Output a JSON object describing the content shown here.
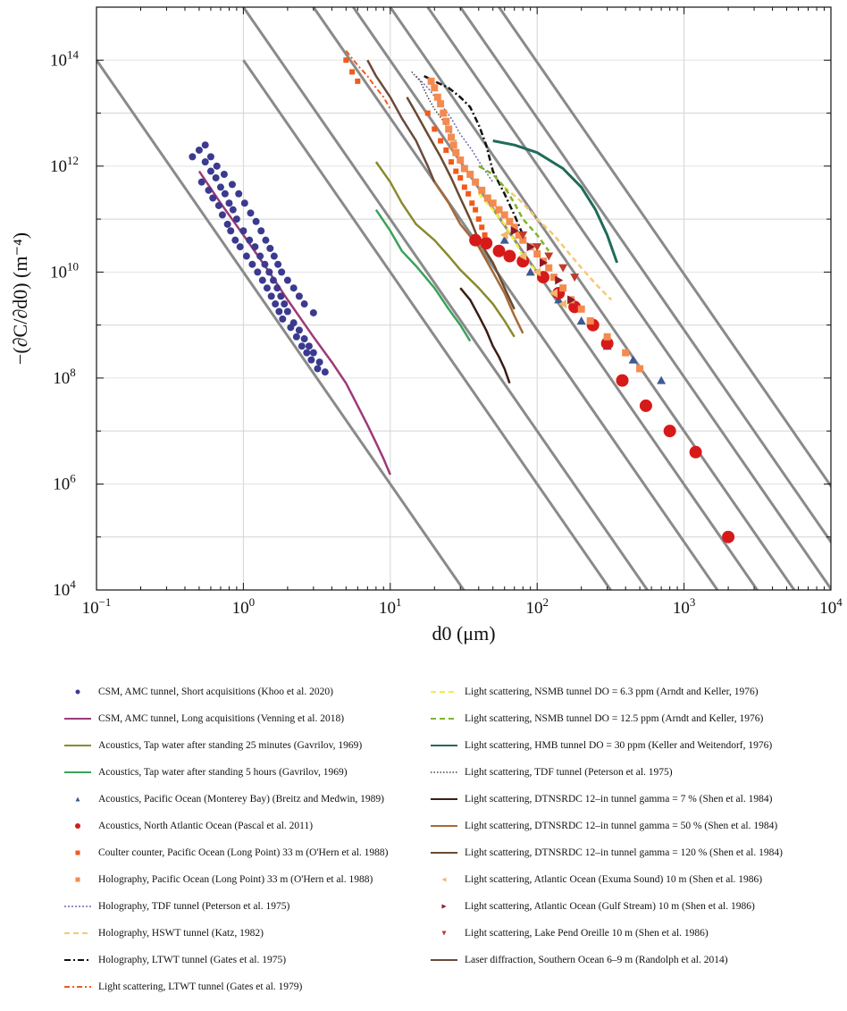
{
  "chart_data": {
    "type": "scatter",
    "xscale": "log",
    "yscale": "log",
    "xlim": [
      0.1,
      10000
    ],
    "ylim": [
      10000,
      1000000000000000
    ],
    "xlabel": "d0 (μm)",
    "ylabel": "−(∂C/∂d0) (m⁻⁴)",
    "x_ticks": [
      {
        "base": "10",
        "exp": "−1"
      },
      {
        "base": "10",
        "exp": "0"
      },
      {
        "base": "10",
        "exp": "1"
      },
      {
        "base": "10",
        "exp": "2"
      },
      {
        "base": "10",
        "exp": "3"
      },
      {
        "base": "10",
        "exp": "4"
      }
    ],
    "y_ticks": [
      {
        "base": "10",
        "exp": "4"
      },
      {
        "base": "10",
        "exp": "6"
      },
      {
        "base": "10",
        "exp": "8"
      },
      {
        "base": "10",
        "exp": "10"
      },
      {
        "base": "10",
        "exp": "12"
      },
      {
        "base": "10",
        "exp": "14"
      }
    ],
    "grid": true,
    "reference_lines_slope": -4,
    "reference_lines": [
      {
        "x": 0.1,
        "y": 100000000000000.0
      },
      {
        "x": 1,
        "y": 100000000000000.0
      },
      {
        "x": 1,
        "y": 1000000000000000.0
      },
      {
        "x": 3,
        "y": 1000000000000000.0
      },
      {
        "x": 5.6,
        "y": 1000000000000000.0
      },
      {
        "x": 10,
        "y": 1000000000000000.0
      },
      {
        "x": 18,
        "y": 1000000000000000.0
      },
      {
        "x": 30,
        "y": 1000000000000000.0
      },
      {
        "x": 55,
        "y": 1000000000000000.0
      }
    ],
    "series": [
      {
        "name": "CSM, AMC tunnel, Short acquisitions (Khoo et al. 2020)",
        "kind": "marker",
        "marker": "circle",
        "color": "#3b3a8f",
        "size": 4,
        "x": [
          0.45,
          0.5,
          0.55,
          0.6,
          0.65,
          0.7,
          0.75,
          0.8,
          0.85,
          0.9,
          1.0,
          1.1,
          1.2,
          1.3,
          1.4,
          1.5,
          1.6,
          1.7,
          1.8,
          1.9,
          2.0,
          2.2,
          2.4,
          2.6,
          2.8,
          3.0,
          3.3,
          3.6,
          0.52,
          0.58,
          0.62,
          0.68,
          0.72,
          0.78,
          0.82,
          0.88,
          0.95,
          1.05,
          1.15,
          1.25,
          1.35,
          1.45,
          1.55,
          1.65,
          1.75,
          1.85,
          2.1,
          2.3,
          2.5,
          2.7,
          2.9,
          3.2,
          0.55,
          0.6,
          0.66,
          0.74,
          0.84,
          0.93,
          1.02,
          1.12,
          1.22,
          1.32,
          1.42,
          1.52,
          1.62,
          1.72,
          1.82,
          2.0,
          2.2,
          2.4,
          2.6,
          3.0
        ],
        "y": [
          1500000000000.0,
          2000000000000.0,
          1200000000000.0,
          800000000000.0,
          600000000000.0,
          400000000000.0,
          300000000000.0,
          200000000000.0,
          150000000000.0,
          100000000000.0,
          60000000000.0,
          40000000000.0,
          30000000000.0,
          20000000000.0,
          14000000000.0,
          10000000000.0,
          7000000000.0,
          5000000000.0,
          3500000000.0,
          2500000000.0,
          1800000000.0,
          1100000000.0,
          800000000.0,
          550000000.0,
          400000000.0,
          300000000.0,
          200000000.0,
          130000000.0,
          500000000000.0,
          350000000000.0,
          250000000000.0,
          180000000000.0,
          120000000000.0,
          80000000000.0,
          60000000000.0,
          40000000000.0,
          30000000000.0,
          20000000000.0,
          14000000000.0,
          10000000000.0,
          7000000000.0,
          5000000000.0,
          3500000000.0,
          2500000000.0,
          1800000000.0,
          1300000000.0,
          900000000.0,
          600000000.0,
          400000000.0,
          300000000.0,
          220000000.0,
          150000000.0,
          2500000000000.0,
          1500000000000.0,
          1000000000000.0,
          700000000000.0,
          450000000000.0,
          300000000000.0,
          200000000000.0,
          130000000000.0,
          90000000000.0,
          60000000000.0,
          40000000000.0,
          28000000000.0,
          20000000000.0,
          14000000000.0,
          10000000000.0,
          7000000000.0,
          5000000000.0,
          3500000000.0,
          2500000000.0,
          1700000000.0
        ]
      },
      {
        "name": "CSM, AMC tunnel, Long acquisitions (Venning et al. 2018)",
        "kind": "line",
        "color": "#9c3a78",
        "dash": "",
        "width": 2.5,
        "x": [
          0.5,
          0.7,
          1,
          1.5,
          2,
          3,
          4,
          5,
          6,
          7,
          8,
          9,
          10
        ],
        "y": [
          800000000000.0,
          200000000000.0,
          50000000000.0,
          10000000000.0,
          3000000000.0,
          600000000.0,
          200000000.0,
          80000000.0,
          30000000.0,
          13000000.0,
          6000000.0,
          3000000.0,
          1500000.0
        ]
      },
      {
        "name": "Acoustics, Tap water after standing 25 minutes (Gavrilov, 1969)",
        "kind": "line",
        "color": "#8a8a2e",
        "dash": "",
        "width": 2.5,
        "x": [
          8,
          10,
          12,
          15,
          20,
          25,
          30,
          40,
          50,
          60,
          70
        ],
        "y": [
          1200000000000.0,
          500000000000.0,
          200000000000.0,
          80000000000.0,
          40000000000.0,
          20000000000.0,
          11000000000.0,
          5000000000.0,
          2500000000.0,
          1200000000.0,
          600000000.0
        ]
      },
      {
        "name": "Acoustics, Tap water after standing 5 hours (Gavrilov, 1969)",
        "kind": "line",
        "color": "#3aa25a",
        "dash": "",
        "width": 2.5,
        "x": [
          8,
          10,
          12,
          15,
          20,
          25,
          30,
          35
        ],
        "y": [
          150000000000.0,
          60000000000.0,
          25000000000.0,
          13000000000.0,
          5000000000.0,
          2000000000.0,
          1000000000.0,
          500000000.0
        ]
      },
      {
        "name": "Acoustics, Pacific Ocean (Monterey Bay) (Breitz and Medwin, 1989)",
        "kind": "marker",
        "marker": "triangle-up",
        "color": "#3e5a96",
        "size": 5,
        "x": [
          60,
          90,
          140,
          200,
          300,
          450,
          700
        ],
        "y": [
          40000000000.0,
          10000000000.0,
          3000000000.0,
          1200000000.0,
          400000000.0,
          220000000.0,
          90000000.0
        ]
      },
      {
        "name": "Acoustics, North Atlantic Ocean (Pascal et al. 2011)",
        "kind": "marker",
        "marker": "circle",
        "color": "#d61a1a",
        "size": 7,
        "x": [
          38,
          45,
          55,
          65,
          80,
          110,
          140,
          180,
          240,
          300,
          380,
          550,
          800,
          1200,
          2000
        ],
        "y": [
          40000000000.0,
          35000000000.0,
          25000000000.0,
          20000000000.0,
          16000000000.0,
          8000000000.0,
          4000000000.0,
          2200000000.0,
          1000000000.0,
          450000000.0,
          90000000.0,
          30000000.0,
          10000000.0,
          4000000.0,
          100000.0
        ]
      },
      {
        "name": "Coulter counter, Pacific Ocean (Long Point) 33 m (O'Hern et al. 1988)",
        "kind": "marker",
        "marker": "square",
        "color": "#f05a1a",
        "size": 3,
        "x": [
          5,
          5.5,
          6,
          18,
          20,
          22,
          24,
          26,
          28,
          30,
          32,
          34,
          36,
          38,
          40,
          42,
          44
        ],
        "y": [
          100000000000000.0,
          60000000000000.0,
          40000000000000.0,
          10000000000000.0,
          5000000000000.0,
          3000000000000.0,
          2000000000000.0,
          1200000000000.0,
          800000000000.0,
          600000000000.0,
          400000000000.0,
          300000000000.0,
          200000000000.0,
          150000000000.0,
          100000000000.0,
          70000000000.0,
          50000000000.0
        ]
      },
      {
        "name": "Holography, Pacific Ocean (Long Point) 33 m (O'Hern et al. 1988)",
        "kind": "marker",
        "marker": "square",
        "color": "#f58a50",
        "size": 4,
        "x": [
          19,
          20,
          21,
          22,
          23,
          24,
          25,
          26,
          27,
          28,
          30,
          32,
          35,
          38,
          42,
          46,
          50,
          55,
          60,
          65,
          70,
          75,
          80,
          90,
          100,
          110,
          120,
          130,
          150,
          170,
          200,
          230,
          300,
          400,
          500
        ],
        "y": [
          40000000000000.0,
          30000000000000.0,
          20000000000000.0,
          15000000000000.0,
          10000000000000.0,
          7000000000000.0,
          5000000000000.0,
          3500000000000.0,
          2500000000000.0,
          1800000000000.0,
          1300000000000.0,
          900000000000.0,
          700000000000.0,
          500000000000.0,
          350000000000.0,
          250000000000.0,
          200000000000.0,
          150000000000.0,
          120000000000.0,
          90000000000.0,
          70000000000.0,
          50000000000.0,
          40000000000.0,
          30000000000.0,
          22000000000.0,
          16000000000.0,
          12000000000.0,
          8000000000.0,
          5000000000.0,
          3000000000.0,
          2000000000.0,
          1200000000.0,
          600000000.0,
          300000000.0,
          150000000.0
        ]
      },
      {
        "name": "Holography, TDF tunnel (Peterson et al. 1975)",
        "kind": "line",
        "color": "#6a6ab0",
        "dash": "2,2",
        "width": 1.5,
        "x": [
          15,
          18,
          22,
          26,
          30,
          36,
          42,
          50
        ],
        "y": [
          50000000000000.0,
          30000000000000.0,
          15000000000000.0,
          8000000000000.0,
          4000000000000.0,
          2000000000000.0,
          1000000000000.0,
          500000000000.0
        ]
      },
      {
        "name": "Holography, HSWT tunnel (Katz, 1982)",
        "kind": "line",
        "color": "#f7c873",
        "dash": "6,4",
        "width": 2.5,
        "x": [
          60,
          80,
          100,
          130,
          160,
          200,
          250,
          320
        ],
        "y": [
          400000000000.0,
          200000000000.0,
          100000000000.0,
          50000000000.0,
          25000000000.0,
          12000000000.0,
          6000000000.0,
          3000000000.0
        ]
      },
      {
        "name": "Holography, LTWT tunnel (Gates et al. 1975)",
        "kind": "line",
        "color": "#111111",
        "dash": "7,3,2,3",
        "width": 2.5,
        "x": [
          17,
          20,
          25,
          30,
          35,
          40,
          45,
          50,
          60,
          70,
          80
        ],
        "y": [
          50000000000000.0,
          40000000000000.0,
          30000000000000.0,
          20000000000000.0,
          13000000000000.0,
          6000000000000.0,
          2500000000000.0,
          800000000000.0,
          300000000000.0,
          120000000000.0,
          50000000000.0
        ]
      },
      {
        "name": "Light scattering, LTWT tunnel (Gates et al. 1979)",
        "kind": "line",
        "color": "#f05a1a",
        "dash": "6,3,2,3",
        "width": 2,
        "x": [
          5,
          6,
          7,
          8,
          9,
          10
        ],
        "y": [
          150000000000000.0,
          80000000000000.0,
          50000000000000.0,
          30000000000000.0,
          20000000000000.0,
          12000000000000.0
        ]
      },
      {
        "name": "Light scattering, NSMB tunnel DO = 6.3 ppm (Arndt and Keller, 1976)",
        "kind": "line",
        "color": "#f2ef3a",
        "dash": "6,4",
        "width": 2.5,
        "x": [
          40,
          50,
          60,
          70,
          80,
          100
        ],
        "y": [
          300000000000.0,
          150000000000.0,
          80000000000.0,
          40000000000.0,
          20000000000.0,
          10000000000.0
        ]
      },
      {
        "name": "Light scattering, NSMB tunnel DO = 12.5 ppm (Arndt and Keller, 1976)",
        "kind": "line",
        "color": "#7fb52a",
        "dash": "6,4",
        "width": 2.5,
        "x": [
          40,
          50,
          60,
          70,
          80,
          100,
          120
        ],
        "y": [
          1000000000000.0,
          700000000000.0,
          400000000000.0,
          200000000000.0,
          100000000000.0,
          50000000000.0,
          25000000000.0
        ]
      },
      {
        "name": "Light scattering, HMB tunnel DO = 30 ppm (Keller and Weitendorf, 1976)",
        "kind": "line",
        "color": "#1f6b5a",
        "dash": "",
        "width": 3,
        "x": [
          50,
          70,
          100,
          150,
          200,
          250,
          300,
          350
        ],
        "y": [
          3000000000000.0,
          2500000000000.0,
          1800000000000.0,
          900000000000.0,
          400000000000.0,
          150000000000.0,
          50000000000.0,
          15000000000.0
        ]
      },
      {
        "name": "Light scattering, TDF tunnel (Peterson et al. 1975)",
        "kind": "line",
        "color": "#444444",
        "dash": "1.5,2",
        "width": 1.5,
        "x": [
          14,
          16,
          18,
          20,
          24,
          28
        ],
        "y": [
          60000000000000.0,
          40000000000000.0,
          20000000000000.0,
          12000000000000.0,
          6000000000000.0,
          3000000000000.0
        ]
      },
      {
        "name": "Light scattering, DTNSRDC 12–in tunnel gamma = 7 % (Shen et al. 1984)",
        "kind": "line",
        "color": "#3a1d14",
        "dash": "",
        "width": 2.5,
        "x": [
          30,
          35,
          40,
          45,
          50,
          55,
          60,
          65
        ],
        "y": [
          5000000000.0,
          3000000000.0,
          1500000000.0,
          800000000.0,
          400000000.0,
          250000000.0,
          150000000.0,
          80000000.0
        ]
      },
      {
        "name": "Light scattering, DTNSRDC 12–in tunnel gamma = 50 % (Shen et al. 1984)",
        "kind": "line",
        "color": "#a56a3a",
        "dash": "",
        "width": 2.5,
        "x": [
          20,
          25,
          30,
          40,
          50,
          60,
          70,
          80
        ],
        "y": [
          500000000000.0,
          200000000000.0,
          80000000000.0,
          30000000000.0,
          10000000000.0,
          4000000000.0,
          1500000000.0,
          700000000.0
        ]
      },
      {
        "name": "Light scattering, DTNSRDC 12–in tunnel gamma = 120 % (Shen et al. 1984)",
        "kind": "line",
        "color": "#6b4a2e",
        "dash": "",
        "width": 2.5,
        "x": [
          13,
          15,
          18,
          22,
          26,
          30,
          35,
          40,
          50,
          60,
          70
        ],
        "y": [
          20000000000000.0,
          10000000000000.0,
          4000000000000.0,
          1500000000000.0,
          600000000000.0,
          250000000000.0,
          100000000000.0,
          40000000000.0,
          15000000000.0,
          5000000000.0,
          2000000000.0
        ]
      },
      {
        "name": "Light scattering, Atlantic Ocean (Exuma Sound) 10 m (Shen et al. 1986)",
        "kind": "marker",
        "marker": "triangle-left",
        "color": "#f2b86a",
        "size": 5,
        "x": [
          60,
          80,
          100,
          130,
          150
        ],
        "y": [
          50000000000.0,
          20000000000.0,
          10000000000.0,
          4000000000.0,
          2500000000.0
        ]
      },
      {
        "name": "Light scattering, Atlantic Ocean (Gulf Stream) 10 m (Shen et al. 1986)",
        "kind": "marker",
        "marker": "triangle-right",
        "color": "#8a1a2a",
        "size": 5,
        "x": [
          70,
          90,
          110,
          140,
          170
        ],
        "y": [
          60000000000.0,
          30000000000.0,
          15000000000.0,
          7000000000.0,
          3000000000.0
        ]
      },
      {
        "name": "Light scattering, Lake Pend Oreille 10 m (Shen et al. 1986)",
        "kind": "marker",
        "marker": "triangle-down",
        "color": "#c03a2a",
        "size": 5,
        "x": [
          80,
          100,
          120,
          150,
          180
        ],
        "y": [
          50000000000.0,
          30000000000.0,
          20000000000.0,
          12000000000.0,
          8000000000.0
        ]
      },
      {
        "name": "Laser diffraction, Southern Ocean 6–9 m (Randolph et al. 2014)",
        "kind": "line",
        "color": "#6b4a3a",
        "dash": "",
        "width": 2.5,
        "x": [
          7,
          8,
          10,
          12,
          15,
          18,
          20
        ],
        "y": [
          100000000000000.0,
          50000000000000.0,
          20000000000000.0,
          8000000000000.0,
          3000000000000.0,
          1000000000000.0,
          500000000000.0
        ]
      }
    ]
  }
}
